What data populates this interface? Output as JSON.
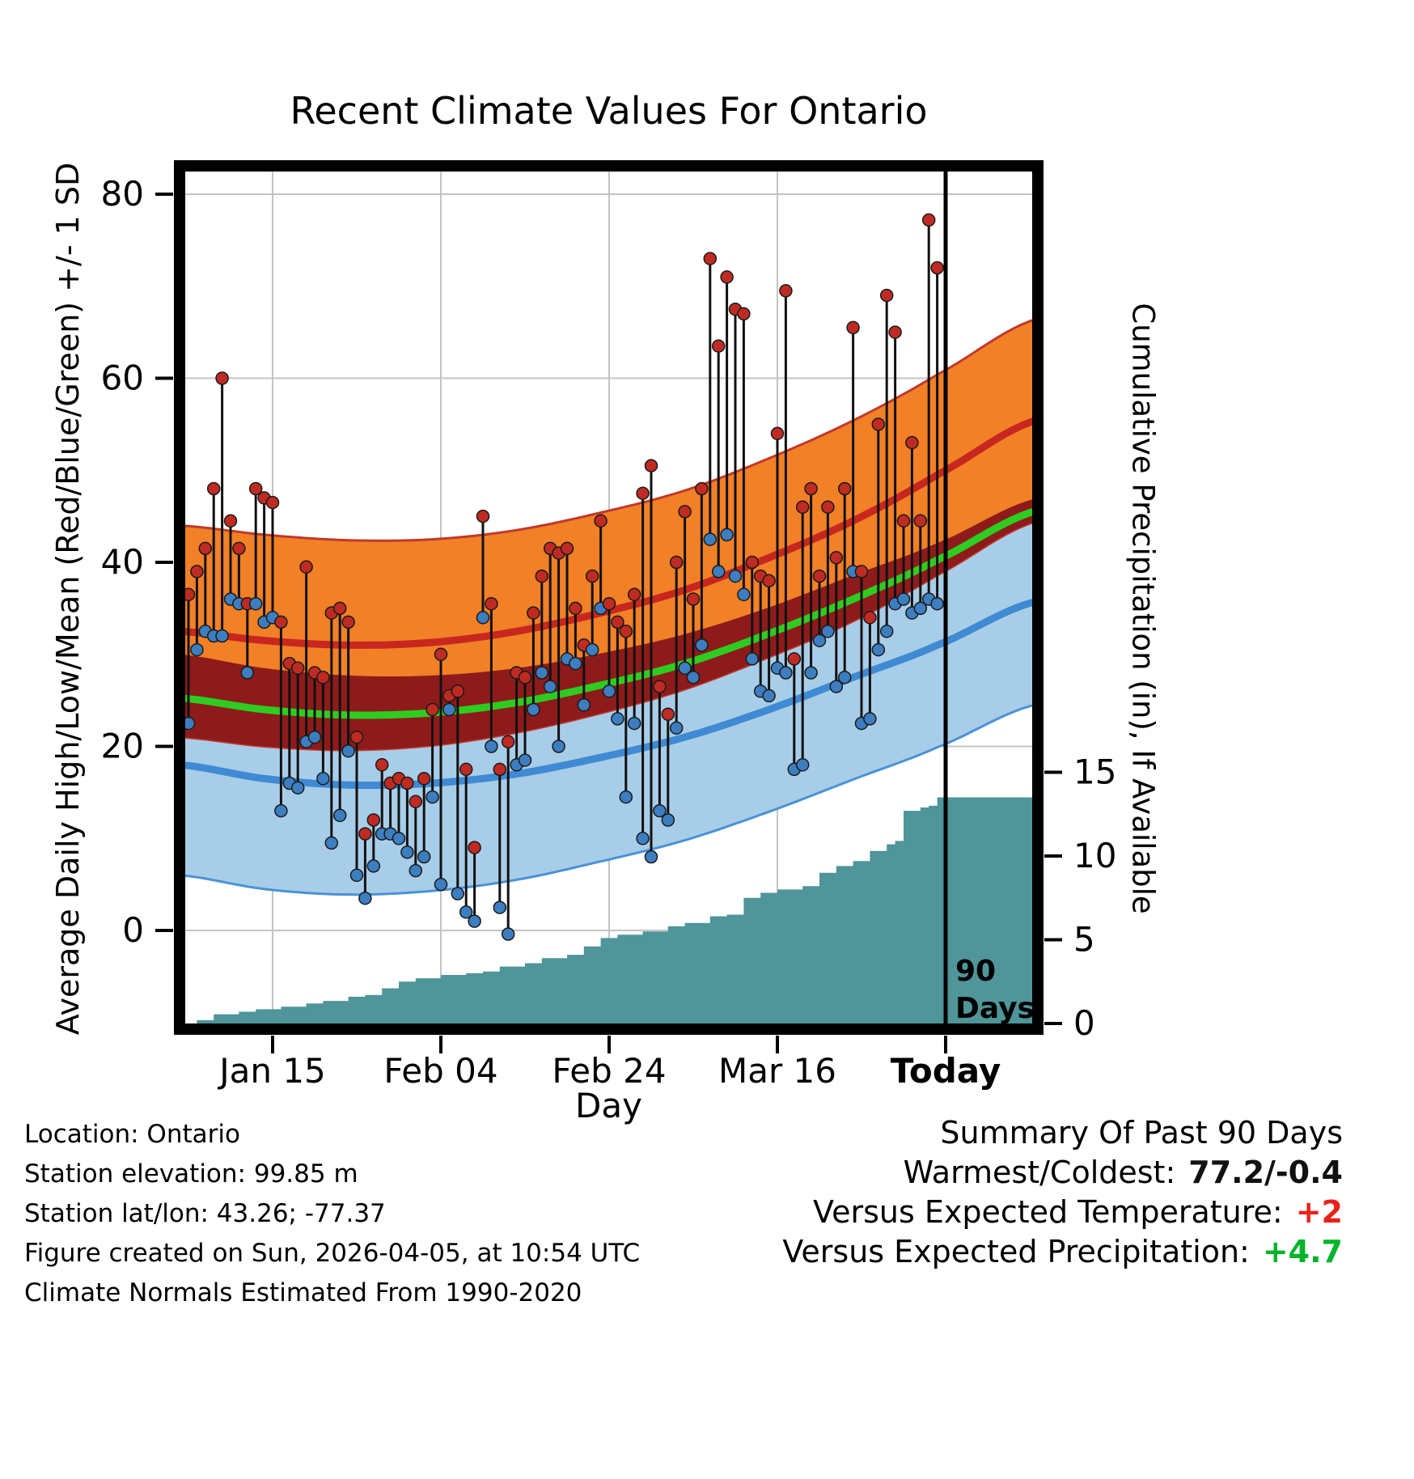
{
  "chart_data": {
    "type": "line",
    "title": "Recent Climate Values For Ontario",
    "xlabel": "Day",
    "ylabel_left": "Average Daily High/Low/Mean (Red/Blue/Green) +/- 1 SD",
    "ylabel_right": "Cumulative Precipitation (in), If Available",
    "temp_axis_ticks": [
      0,
      20,
      40,
      60,
      80
    ],
    "left_ticks": [
      0,
      20,
      40,
      60,
      80
    ],
    "right_ticks": [
      0,
      5,
      10,
      15
    ],
    "x_ticks": [
      {
        "day": 11,
        "label": "Jan 15",
        "bold": false
      },
      {
        "day": 31,
        "label": "Feb 04",
        "bold": false
      },
      {
        "day": 51,
        "label": "Feb 24",
        "bold": false
      },
      {
        "day": 71,
        "label": "Mar 16",
        "bold": false
      },
      {
        "day": 91,
        "label": "Today",
        "bold": true
      }
    ],
    "today_day": 91,
    "annotation_90days": [
      "90",
      "Days"
    ],
    "normals": {
      "control_days": [
        0,
        10,
        20,
        30,
        40,
        50,
        60,
        70,
        80,
        90,
        102
      ],
      "high": [
        32.5,
        31.5,
        31.0,
        31.3,
        32.5,
        34.5,
        37.0,
        40.5,
        44.5,
        49.5,
        55.5
      ],
      "low": [
        18.0,
        16.5,
        15.8,
        16.0,
        17.0,
        18.8,
        21.0,
        24.0,
        27.5,
        31.0,
        35.8
      ],
      "high_sd": [
        11.5,
        11.5,
        11.4,
        11.2,
        11.0,
        10.9,
        10.8,
        10.8,
        10.9,
        10.9,
        11.0
      ],
      "low_sd": [
        12.0,
        12.0,
        11.9,
        11.7,
        11.5,
        11.3,
        11.2,
        11.1,
        11.1,
        11.1,
        11.2
      ]
    },
    "observations": {
      "start_day": 1,
      "high": [
        36.5,
        39,
        41.5,
        48,
        60,
        44.5,
        41.5,
        35.5,
        48,
        47,
        46.5,
        33.5,
        29,
        28.5,
        39.5,
        28,
        27.5,
        34.5,
        35,
        33.5,
        21,
        10.5,
        12,
        18,
        16,
        16.5,
        16,
        14,
        16.5,
        24,
        30,
        25.5,
        26,
        17.5,
        9,
        45,
        35.5,
        17.5,
        20.5,
        28,
        27.5,
        34.5,
        38.5,
        41.5,
        41,
        41.5,
        35,
        31,
        38.5,
        44.5,
        35.5,
        33.5,
        32.5,
        36.5,
        47.5,
        50.5,
        26.5,
        23.5,
        40,
        45.5,
        36,
        48,
        73,
        63.5,
        71,
        67.5,
        67,
        40,
        38.5,
        38,
        54,
        69.5,
        29.5,
        46,
        48,
        38.5,
        46,
        40.5,
        48,
        65.5,
        39,
        34,
        55,
        69,
        65,
        44.5,
        53,
        44.5,
        77.2,
        72
      ],
      "low": [
        22.5,
        30.5,
        32.5,
        32,
        32,
        36,
        35.5,
        28,
        35.5,
        33.5,
        34,
        13,
        16,
        15.5,
        20.5,
        21,
        16.5,
        9.5,
        12.5,
        19.5,
        6,
        3.5,
        7,
        10.5,
        10.5,
        10,
        8.5,
        6.5,
        8,
        14.5,
        5,
        24,
        4,
        2,
        1,
        34,
        20,
        2.5,
        -0.4,
        18,
        18.5,
        24,
        28,
        26.5,
        20,
        29.5,
        29,
        24.5,
        30.5,
        35,
        26,
        23,
        14.5,
        22.5,
        10,
        8,
        13,
        12,
        22,
        28.5,
        27.5,
        31,
        42.5,
        39,
        43,
        38.5,
        36.5,
        29.5,
        26,
        25.5,
        28.5,
        28,
        17.5,
        18,
        28,
        31.5,
        32.5,
        26.5,
        27.5,
        39,
        22.5,
        23,
        30.5,
        32.5,
        35.5,
        36,
        34.5,
        35,
        36,
        35.5
      ]
    },
    "precip_cumulative_steps": [
      [
        2,
        0.2
      ],
      [
        4,
        0.55
      ],
      [
        7,
        0.7
      ],
      [
        9,
        0.85
      ],
      [
        12,
        1.0
      ],
      [
        15,
        1.2
      ],
      [
        17,
        1.35
      ],
      [
        20,
        1.6
      ],
      [
        22,
        1.7
      ],
      [
        24,
        2.1
      ],
      [
        26,
        2.5
      ],
      [
        28,
        2.7
      ],
      [
        31,
        2.9
      ],
      [
        34,
        3.0
      ],
      [
        36,
        3.1
      ],
      [
        38,
        3.4
      ],
      [
        41,
        3.6
      ],
      [
        43,
        3.9
      ],
      [
        46,
        4.1
      ],
      [
        48,
        4.6
      ],
      [
        50,
        5.1
      ],
      [
        52,
        5.3
      ],
      [
        55,
        5.5
      ],
      [
        58,
        5.8
      ],
      [
        60,
        6.0
      ],
      [
        63,
        6.4
      ],
      [
        65,
        6.5
      ],
      [
        67,
        7.5
      ],
      [
        69,
        7.8
      ],
      [
        71,
        8.0
      ],
      [
        74,
        8.2
      ],
      [
        76,
        9.0
      ],
      [
        78,
        9.4
      ],
      [
        80,
        9.7
      ],
      [
        82,
        10.3
      ],
      [
        84,
        10.7
      ],
      [
        85,
        10.9
      ],
      [
        86,
        12.7
      ],
      [
        88,
        12.9
      ],
      [
        89,
        13.0
      ],
      [
        90,
        13.5
      ],
      [
        102,
        13.5
      ]
    ]
  },
  "footer": {
    "lines": [
      "Location: Ontario",
      "Station elevation: 99.85 m",
      "Station lat/lon: 43.26; -77.37",
      "Figure created on Sun, 2026-04-05, at 10:54 UTC",
      "Climate Normals Estimated From 1990-2020"
    ]
  },
  "summary": {
    "title": "Summary Of Past 90 Days",
    "rows": [
      {
        "label": "Warmest/Coldest:",
        "value": "77.2/-0.4",
        "value_color": "#111111"
      },
      {
        "label": "Versus Expected Temperature:",
        "value": "+2",
        "value_color": "#e8221a"
      },
      {
        "label": "Versus Expected Precipitation:",
        "value": "+4.7",
        "value_color": "#00b42a"
      }
    ]
  },
  "colors": {
    "high_band": "#f28026",
    "high_band_edge": "#c0392b",
    "high_line": "#c7271f",
    "overlap_band": "#8e1b1b",
    "mean_line": "#2ecc21",
    "low_band": "#a8cde8",
    "low_band_edge": "#4a92d6",
    "low_line": "#3f8ad2",
    "precip_fill": "#4f9599",
    "obs_high": "#bf2b22",
    "obs_low": "#3c7ec0",
    "obs_line": "#111111",
    "grid": "#c4c4c4",
    "frame": "#000000"
  }
}
